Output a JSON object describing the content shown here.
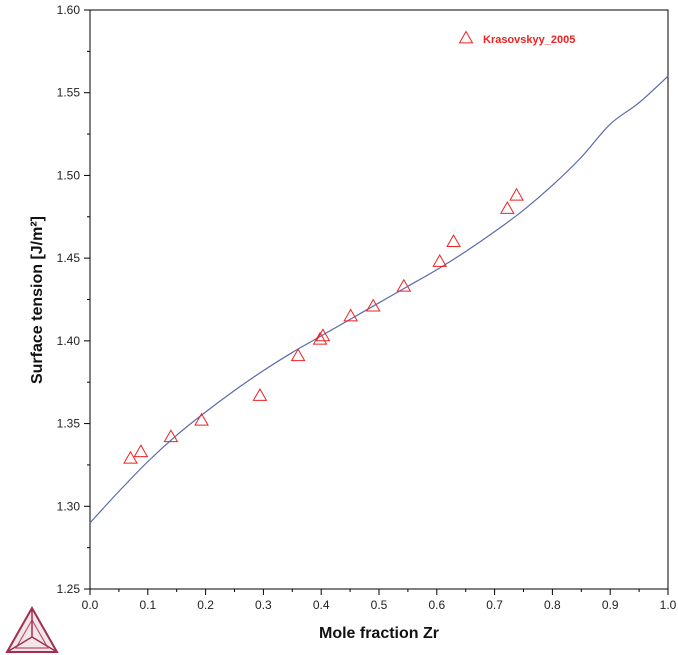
{
  "chart_data": {
    "type": "scatter",
    "title": "",
    "xlabel": "Mole fraction Zr",
    "ylabel": "Surface tension [J/m²]",
    "xlim": [
      0.0,
      1.0
    ],
    "ylim": [
      1.25,
      1.6
    ],
    "x_ticks": [
      0.0,
      0.1,
      0.2,
      0.3,
      0.4,
      0.5,
      0.6,
      0.7,
      0.8,
      0.9,
      1.0
    ],
    "x_tick_labels": [
      "0.0",
      "0.1",
      "0.2",
      "0.3",
      "0.4",
      "0.5",
      "0.6",
      "0.7",
      "0.8",
      "0.9",
      "1.0"
    ],
    "y_ticks": [
      1.25,
      1.3,
      1.35,
      1.4,
      1.45,
      1.5,
      1.55,
      1.6
    ],
    "y_tick_labels": [
      "1.25",
      "1.30",
      "1.35",
      "1.40",
      "1.45",
      "1.50",
      "1.55",
      "1.60"
    ],
    "grid": false,
    "legend_position": "top-right",
    "calculated_curve": {
      "color": "#5a6aa8",
      "x": [
        0.0,
        0.05,
        0.1,
        0.15,
        0.2,
        0.25,
        0.3,
        0.35,
        0.4,
        0.45,
        0.5,
        0.55,
        0.6,
        0.65,
        0.7,
        0.75,
        0.8,
        0.85,
        0.9,
        0.95,
        1.0
      ],
      "y": [
        1.29,
        1.309,
        1.327,
        1.343,
        1.357,
        1.37,
        1.382,
        1.393,
        1.403,
        1.413,
        1.423,
        1.433,
        1.443,
        1.454,
        1.466,
        1.479,
        1.494,
        1.511,
        1.531,
        1.544,
        1.56
      ]
    },
    "series": [
      {
        "name": "Krasovskyy_2005",
        "marker": "triangle",
        "color": "#ee2222",
        "x": [
          0.07,
          0.088,
          0.14,
          0.193,
          0.294,
          0.36,
          0.398,
          0.403,
          0.451,
          0.49,
          0.543,
          0.605,
          0.629,
          0.722,
          0.738
        ],
        "y": [
          1.329,
          1.333,
          1.342,
          1.352,
          1.367,
          1.391,
          1.401,
          1.403,
          1.415,
          1.421,
          1.433,
          1.448,
          1.46,
          1.48,
          1.488
        ]
      }
    ]
  },
  "logo": {
    "icon": "thermo-calc-triangle-logo",
    "colors": [
      "#a03050",
      "#c05070"
    ]
  }
}
